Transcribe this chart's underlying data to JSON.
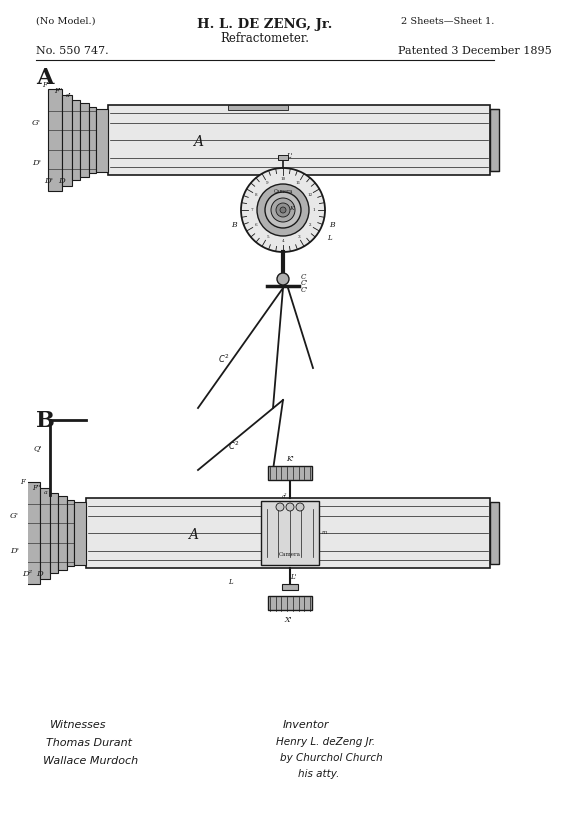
{
  "bg_color": "#ffffff",
  "title_line1": "H. L. DE ZENG, Jr.",
  "title_line2": "Refractometer.",
  "top_left": "(No Model.)",
  "top_right": "2 Sheets—Sheet 1.",
  "patent_no": "No. 550 747.",
  "patent_date": "Patented 3 December 1895",
  "fig_a_label": "A",
  "fig_b_label": "B",
  "witness_label": "Witnesses",
  "witness1": "Thomas Durant",
  "witness2": "Wallace Murdoch",
  "inventor_label": "Inventor",
  "inventor1": "Henry L. deZeng Jr.",
  "inventor2": "by Churchol Church",
  "inventor3": "his atty."
}
